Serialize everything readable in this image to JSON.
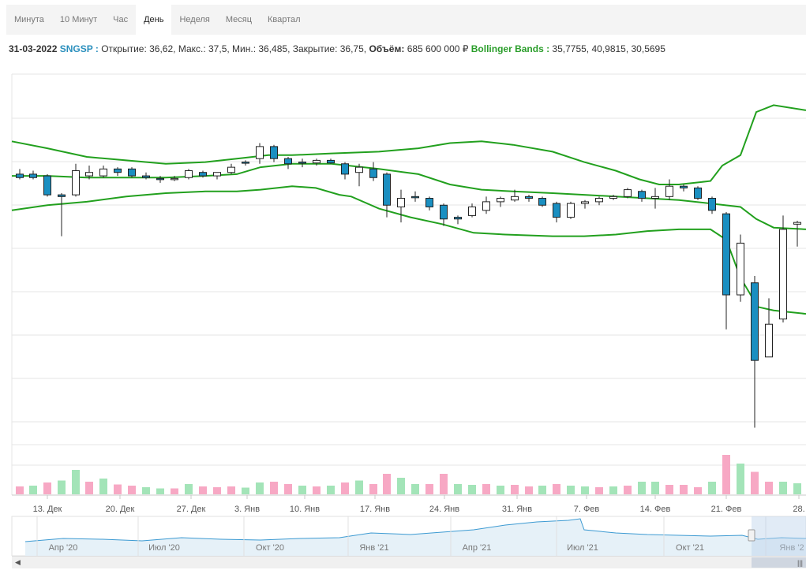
{
  "tabs": [
    "Минута",
    "10 Минут",
    "Час",
    "День",
    "Неделя",
    "Месяц",
    "Квартал"
  ],
  "active_tab": "День",
  "info": {
    "date": "31-03-2022",
    "symbol": "SNGSP :",
    "ohlc_text": "Открытие: 36,62, Макс.: 37,5, Мин.: 36,485, Закрытие: 36,75,",
    "volume_label": "Объём:",
    "volume_value": "685 600 000 ₽",
    "bb_label": "Bollinger Bands :",
    "bb_values": "35,7755, 40,9815, 30,5695"
  },
  "colors": {
    "up_fill": "#ffffff",
    "down_fill": "#1a8fc1",
    "up_down_bar_teal": "#149a9a",
    "bollinger": "#22a01e",
    "volume_up": "#a3e4b8",
    "volume_down": "#f7a8c4",
    "navigator_line": "#3c9ad2"
  },
  "chart_data": {
    "type": "candlestick",
    "x_tick_labels": [
      "13. Дек",
      "20. Дек",
      "27. Дек",
      "3. Янв",
      "10. Янв",
      "17. Янв",
      "24. Янв",
      "31. Янв",
      "7. Фев",
      "14. Фев",
      "21. Фев",
      "28."
    ],
    "ylim": [
      22.5,
      47.0
    ],
    "grid": true,
    "candles": [
      {
        "x": 25,
        "o": 41.2,
        "h": 41.5,
        "l": 40.9,
        "c": 41.0,
        "d": "down"
      },
      {
        "x": 42,
        "o": 41.2,
        "h": 41.4,
        "l": 40.9,
        "c": 41.0,
        "d": "down"
      },
      {
        "x": 60,
        "o": 41.1,
        "h": 41.2,
        "l": 39.9,
        "c": 40.0,
        "d": "down"
      },
      {
        "x": 78,
        "o": 40.0,
        "h": 40.1,
        "l": 37.6,
        "c": 39.9,
        "d": "down"
      },
      {
        "x": 96,
        "o": 40.0,
        "h": 41.8,
        "l": 39.9,
        "c": 41.4,
        "d": "up"
      },
      {
        "x": 113,
        "o": 41.1,
        "h": 41.7,
        "l": 40.9,
        "c": 41.3,
        "d": "up"
      },
      {
        "x": 131,
        "o": 41.1,
        "h": 41.7,
        "l": 41.0,
        "c": 41.5,
        "d": "up"
      },
      {
        "x": 149,
        "o": 41.5,
        "h": 41.6,
        "l": 41.1,
        "c": 41.3,
        "d": "down"
      },
      {
        "x": 167,
        "o": 41.5,
        "h": 41.6,
        "l": 41.0,
        "c": 41.1,
        "d": "down"
      },
      {
        "x": 185,
        "o": 41.1,
        "h": 41.3,
        "l": 40.9,
        "c": 41.0,
        "d": "down"
      },
      {
        "x": 203,
        "o": 40.95,
        "h": 41.1,
        "l": 40.7,
        "c": 40.9,
        "d": "down"
      },
      {
        "x": 221,
        "o": 40.9,
        "h": 41.1,
        "l": 40.8,
        "c": 40.95,
        "d": "up"
      },
      {
        "x": 239,
        "o": 41.0,
        "h": 41.5,
        "l": 40.9,
        "c": 41.4,
        "d": "up"
      },
      {
        "x": 257,
        "o": 41.3,
        "h": 41.4,
        "l": 41.0,
        "c": 41.1,
        "d": "down"
      },
      {
        "x": 275,
        "o": 41.1,
        "h": 41.3,
        "l": 40.9,
        "c": 41.3,
        "d": "up"
      },
      {
        "x": 293,
        "o": 41.3,
        "h": 41.8,
        "l": 41.2,
        "c": 41.6,
        "d": "up"
      },
      {
        "x": 311,
        "o": 41.9,
        "h": 42.0,
        "l": 41.7,
        "c": 41.85,
        "d": "down"
      },
      {
        "x": 329,
        "o": 42.1,
        "h": 43.0,
        "l": 41.8,
        "c": 42.8,
        "d": "up"
      },
      {
        "x": 347,
        "o": 42.8,
        "h": 42.9,
        "l": 41.9,
        "c": 42.1,
        "d": "down"
      },
      {
        "x": 365,
        "o": 42.1,
        "h": 42.2,
        "l": 41.5,
        "c": 41.8,
        "d": "down"
      },
      {
        "x": 383,
        "o": 41.9,
        "h": 42.1,
        "l": 41.6,
        "c": 41.85,
        "d": "down"
      },
      {
        "x": 401,
        "o": 41.85,
        "h": 42.1,
        "l": 41.7,
        "c": 42.0,
        "d": "up"
      },
      {
        "x": 419,
        "o": 42.0,
        "h": 42.1,
        "l": 41.8,
        "c": 41.85,
        "d": "down"
      },
      {
        "x": 437,
        "o": 41.8,
        "h": 41.9,
        "l": 40.9,
        "c": 41.2,
        "d": "down"
      },
      {
        "x": 455,
        "o": 41.6,
        "h": 41.8,
        "l": 40.5,
        "c": 41.3,
        "d": "up"
      },
      {
        "x": 473,
        "o": 41.5,
        "h": 41.9,
        "l": 40.8,
        "c": 41.0,
        "d": "down"
      },
      {
        "x": 490,
        "o": 41.2,
        "h": 41.3,
        "l": 38.7,
        "c": 39.4,
        "d": "down"
      },
      {
        "x": 508,
        "o": 39.3,
        "h": 40.3,
        "l": 38.4,
        "c": 39.8,
        "d": "up"
      },
      {
        "x": 526,
        "o": 39.9,
        "h": 40.2,
        "l": 39.6,
        "c": 39.9,
        "d": "down"
      },
      {
        "x": 544,
        "o": 39.8,
        "h": 39.9,
        "l": 39.1,
        "c": 39.3,
        "d": "down"
      },
      {
        "x": 562,
        "o": 39.4,
        "h": 39.5,
        "l": 38.2,
        "c": 38.6,
        "d": "down"
      },
      {
        "x": 580,
        "o": 38.7,
        "h": 38.8,
        "l": 38.3,
        "c": 38.6,
        "d": "down"
      },
      {
        "x": 598,
        "o": 38.8,
        "h": 39.5,
        "l": 38.7,
        "c": 39.3,
        "d": "up"
      },
      {
        "x": 616,
        "o": 39.1,
        "h": 39.9,
        "l": 38.9,
        "c": 39.6,
        "d": "up"
      },
      {
        "x": 634,
        "o": 39.6,
        "h": 39.9,
        "l": 39.3,
        "c": 39.8,
        "d": "up"
      },
      {
        "x": 652,
        "o": 39.7,
        "h": 40.3,
        "l": 39.6,
        "c": 39.9,
        "d": "up"
      },
      {
        "x": 670,
        "o": 39.9,
        "h": 40.0,
        "l": 39.6,
        "c": 39.8,
        "d": "down"
      },
      {
        "x": 687,
        "o": 39.8,
        "h": 39.9,
        "l": 39.3,
        "c": 39.4,
        "d": "down"
      },
      {
        "x": 705,
        "o": 39.5,
        "h": 39.6,
        "l": 38.4,
        "c": 38.7,
        "d": "down"
      },
      {
        "x": 723,
        "o": 38.7,
        "h": 39.6,
        "l": 38.6,
        "c": 39.5,
        "d": "up"
      },
      {
        "x": 741,
        "o": 39.5,
        "h": 39.7,
        "l": 39.2,
        "c": 39.6,
        "d": "up"
      },
      {
        "x": 759,
        "o": 39.6,
        "h": 39.9,
        "l": 39.4,
        "c": 39.8,
        "d": "up"
      },
      {
        "x": 777,
        "o": 39.8,
        "h": 40.0,
        "l": 39.7,
        "c": 39.9,
        "d": "up"
      },
      {
        "x": 795,
        "o": 39.9,
        "h": 40.4,
        "l": 39.8,
        "c": 40.3,
        "d": "up"
      },
      {
        "x": 813,
        "o": 40.2,
        "h": 40.3,
        "l": 39.6,
        "c": 39.8,
        "d": "down"
      },
      {
        "x": 830,
        "o": 39.8,
        "h": 40.4,
        "l": 39.2,
        "c": 39.9,
        "d": "up"
      },
      {
        "x": 848,
        "o": 39.9,
        "h": 40.9,
        "l": 39.7,
        "c": 40.5,
        "d": "up"
      },
      {
        "x": 866,
        "o": 40.5,
        "h": 40.6,
        "l": 40.2,
        "c": 40.4,
        "d": "down"
      },
      {
        "x": 884,
        "o": 40.4,
        "h": 40.5,
        "l": 39.7,
        "c": 39.8,
        "d": "down"
      },
      {
        "x": 902,
        "o": 39.8,
        "h": 39.9,
        "l": 38.9,
        "c": 39.1,
        "d": "down"
      },
      {
        "x": 920,
        "o": 38.9,
        "h": 39.0,
        "l": 32.2,
        "c": 34.2,
        "d": "down"
      },
      {
        "x": 938,
        "o": 34.2,
        "h": 37.7,
        "l": 33.8,
        "c": 37.2,
        "d": "up"
      },
      {
        "x": 956,
        "o": 34.9,
        "h": 35.3,
        "l": 26.5,
        "c": 30.4,
        "d": "down"
      },
      {
        "x": 974,
        "o": 30.6,
        "h": 34.0,
        "l": 30.6,
        "c": 32.5,
        "d": "up"
      },
      {
        "x": 992,
        "o": 32.8,
        "h": 38.8,
        "l": 32.6,
        "c": 38.0,
        "d": "up"
      },
      {
        "x": 1010,
        "o": 38.3,
        "h": 38.5,
        "l": 37.0,
        "c": 38.4,
        "d": "up"
      }
    ],
    "bollinger": {
      "upper": [
        [
          15,
          43.1
        ],
        [
          60,
          42.7
        ],
        [
          110,
          42.2
        ],
        [
          160,
          42.0
        ],
        [
          210,
          41.8
        ],
        [
          260,
          41.9
        ],
        [
          300,
          42.1
        ],
        [
          340,
          42.3
        ],
        [
          370,
          42.3
        ],
        [
          420,
          42.4
        ],
        [
          480,
          42.5
        ],
        [
          530,
          42.7
        ],
        [
          570,
          43.0
        ],
        [
          610,
          43.1
        ],
        [
          650,
          42.9
        ],
        [
          700,
          42.5
        ],
        [
          740,
          41.9
        ],
        [
          780,
          41.4
        ],
        [
          810,
          40.9
        ],
        [
          835,
          40.6
        ],
        [
          860,
          40.6
        ],
        [
          900,
          40.8
        ],
        [
          915,
          41.7
        ],
        [
          938,
          42.3
        ],
        [
          958,
          44.8
        ],
        [
          980,
          45.2
        ],
        [
          1021,
          44.9
        ]
      ],
      "middle": [
        [
          15,
          41.1
        ],
        [
          60,
          41.1
        ],
        [
          110,
          41.0
        ],
        [
          160,
          41.0
        ],
        [
          210,
          41.0
        ],
        [
          260,
          41.1
        ],
        [
          300,
          41.2
        ],
        [
          330,
          41.6
        ],
        [
          370,
          41.8
        ],
        [
          420,
          41.8
        ],
        [
          480,
          41.5
        ],
        [
          530,
          41.2
        ],
        [
          570,
          40.6
        ],
        [
          610,
          40.3
        ],
        [
          650,
          40.2
        ],
        [
          700,
          40.1
        ],
        [
          740,
          40.0
        ],
        [
          780,
          39.9
        ],
        [
          820,
          39.8
        ],
        [
          860,
          39.7
        ],
        [
          900,
          39.5
        ],
        [
          938,
          39.3
        ],
        [
          958,
          38.6
        ],
        [
          980,
          38.1
        ],
        [
          1021,
          38.0
        ]
      ],
      "lower": [
        [
          15,
          39.1
        ],
        [
          60,
          39.4
        ],
        [
          110,
          39.6
        ],
        [
          160,
          39.9
        ],
        [
          210,
          40.1
        ],
        [
          260,
          40.2
        ],
        [
          300,
          40.2
        ],
        [
          330,
          40.3
        ],
        [
          370,
          40.5
        ],
        [
          400,
          40.4
        ],
        [
          430,
          40.0
        ],
        [
          445,
          39.9
        ],
        [
          480,
          39.2
        ],
        [
          520,
          38.7
        ],
        [
          560,
          38.3
        ],
        [
          600,
          37.8
        ],
        [
          640,
          37.7
        ],
        [
          700,
          37.6
        ],
        [
          740,
          37.6
        ],
        [
          780,
          37.7
        ],
        [
          820,
          37.9
        ],
        [
          860,
          38.0
        ],
        [
          900,
          38.0
        ],
        [
          920,
          37.4
        ],
        [
          938,
          35.2
        ],
        [
          960,
          33.5
        ],
        [
          980,
          33.3
        ],
        [
          1021,
          33.1
        ]
      ]
    },
    "volume": [
      {
        "x": 25,
        "v": 0.2,
        "d": "down"
      },
      {
        "x": 42,
        "v": 0.22,
        "d": "up"
      },
      {
        "x": 60,
        "v": 0.3,
        "d": "down"
      },
      {
        "x": 78,
        "v": 0.35,
        "d": "up"
      },
      {
        "x": 96,
        "v": 0.62,
        "d": "up"
      },
      {
        "x": 113,
        "v": 0.32,
        "d": "down"
      },
      {
        "x": 131,
        "v": 0.4,
        "d": "up"
      },
      {
        "x": 149,
        "v": 0.25,
        "d": "down"
      },
      {
        "x": 167,
        "v": 0.22,
        "d": "down"
      },
      {
        "x": 185,
        "v": 0.18,
        "d": "up"
      },
      {
        "x": 203,
        "v": 0.15,
        "d": "up"
      },
      {
        "x": 221,
        "v": 0.15,
        "d": "down"
      },
      {
        "x": 239,
        "v": 0.26,
        "d": "up"
      },
      {
        "x": 257,
        "v": 0.2,
        "d": "down"
      },
      {
        "x": 275,
        "v": 0.18,
        "d": "down"
      },
      {
        "x": 293,
        "v": 0.2,
        "d": "down"
      },
      {
        "x": 311,
        "v": 0.17,
        "d": "up"
      },
      {
        "x": 329,
        "v": 0.3,
        "d": "up"
      },
      {
        "x": 347,
        "v": 0.32,
        "d": "down"
      },
      {
        "x": 365,
        "v": 0.26,
        "d": "down"
      },
      {
        "x": 383,
        "v": 0.22,
        "d": "up"
      },
      {
        "x": 401,
        "v": 0.2,
        "d": "down"
      },
      {
        "x": 419,
        "v": 0.22,
        "d": "up"
      },
      {
        "x": 437,
        "v": 0.3,
        "d": "down"
      },
      {
        "x": 455,
        "v": 0.35,
        "d": "up"
      },
      {
        "x": 473,
        "v": 0.26,
        "d": "down"
      },
      {
        "x": 490,
        "v": 0.52,
        "d": "down"
      },
      {
        "x": 508,
        "v": 0.42,
        "d": "up"
      },
      {
        "x": 526,
        "v": 0.26,
        "d": "up"
      },
      {
        "x": 544,
        "v": 0.26,
        "d": "down"
      },
      {
        "x": 562,
        "v": 0.52,
        "d": "down"
      },
      {
        "x": 580,
        "v": 0.26,
        "d": "up"
      },
      {
        "x": 598,
        "v": 0.24,
        "d": "up"
      },
      {
        "x": 616,
        "v": 0.26,
        "d": "down"
      },
      {
        "x": 634,
        "v": 0.22,
        "d": "up"
      },
      {
        "x": 652,
        "v": 0.24,
        "d": "down"
      },
      {
        "x": 670,
        "v": 0.2,
        "d": "down"
      },
      {
        "x": 687,
        "v": 0.22,
        "d": "up"
      },
      {
        "x": 705,
        "v": 0.26,
        "d": "down"
      },
      {
        "x": 723,
        "v": 0.22,
        "d": "up"
      },
      {
        "x": 741,
        "v": 0.2,
        "d": "up"
      },
      {
        "x": 759,
        "v": 0.18,
        "d": "down"
      },
      {
        "x": 777,
        "v": 0.2,
        "d": "up"
      },
      {
        "x": 795,
        "v": 0.22,
        "d": "down"
      },
      {
        "x": 813,
        "v": 0.32,
        "d": "up"
      },
      {
        "x": 830,
        "v": 0.32,
        "d": "up"
      },
      {
        "x": 848,
        "v": 0.24,
        "d": "down"
      },
      {
        "x": 866,
        "v": 0.24,
        "d": "down"
      },
      {
        "x": 884,
        "v": 0.18,
        "d": "down"
      },
      {
        "x": 902,
        "v": 0.32,
        "d": "up"
      },
      {
        "x": 920,
        "v": 1.0,
        "d": "down"
      },
      {
        "x": 938,
        "v": 0.78,
        "d": "up"
      },
      {
        "x": 956,
        "v": 0.57,
        "d": "down"
      },
      {
        "x": 974,
        "v": 0.32,
        "d": "down"
      },
      {
        "x": 992,
        "v": 0.32,
        "d": "up"
      },
      {
        "x": 1010,
        "v": 0.28,
        "d": "up"
      }
    ]
  },
  "navigator": {
    "labels": [
      "Апр '20",
      "Июл '20",
      "Окт '20",
      "Янв '21",
      "Апр '21",
      "Июл '21",
      "Окт '21",
      "Янв '2"
    ],
    "line": [
      [
        32,
        687
      ],
      [
        80,
        683
      ],
      [
        130,
        684
      ],
      [
        180,
        686
      ],
      [
        230,
        682
      ],
      [
        280,
        684
      ],
      [
        330,
        685
      ],
      [
        380,
        683
      ],
      [
        430,
        682
      ],
      [
        470,
        676
      ],
      [
        520,
        678
      ],
      [
        560,
        675
      ],
      [
        600,
        672
      ],
      [
        640,
        666
      ],
      [
        680,
        662
      ],
      [
        720,
        660
      ],
      [
        735,
        658
      ],
      [
        740,
        672
      ],
      [
        780,
        676
      ],
      [
        820,
        678
      ],
      [
        860,
        679
      ],
      [
        900,
        680
      ],
      [
        940,
        679
      ],
      [
        960,
        684
      ],
      [
        990,
        682
      ],
      [
        1021,
        683
      ]
    ]
  }
}
